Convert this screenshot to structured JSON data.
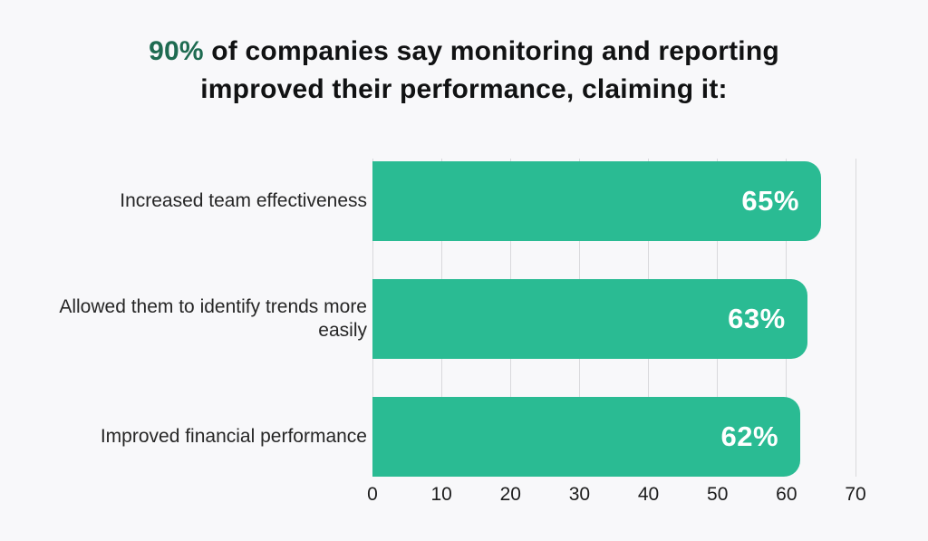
{
  "title": {
    "highlight": "90%",
    "rest_line1": " of companies say monitoring and reporting",
    "line2": "improved their performance, claiming it:"
  },
  "chart_data": {
    "type": "bar",
    "orientation": "horizontal",
    "title": "90% of companies say monitoring and reporting improved their performance, claiming it:",
    "categories": [
      "Increased team effectiveness",
      "Allowed them to identify trends more easily",
      "Improved financial performance"
    ],
    "values": [
      65,
      63,
      62
    ],
    "value_labels": [
      "65%",
      "63%",
      "62%"
    ],
    "x_ticks": [
      0,
      10,
      20,
      30,
      40,
      50,
      60,
      70
    ],
    "xlim": [
      0,
      70
    ],
    "xlabel": "",
    "ylabel": "",
    "grid": true,
    "legend": "none"
  },
  "colors": {
    "background": "#f8f8fa",
    "bar": "#2abb93",
    "title_highlight": "#1e6b51",
    "title_text": "#111213",
    "gridline": "#d9d9dc",
    "value_label": "#ffffff"
  }
}
